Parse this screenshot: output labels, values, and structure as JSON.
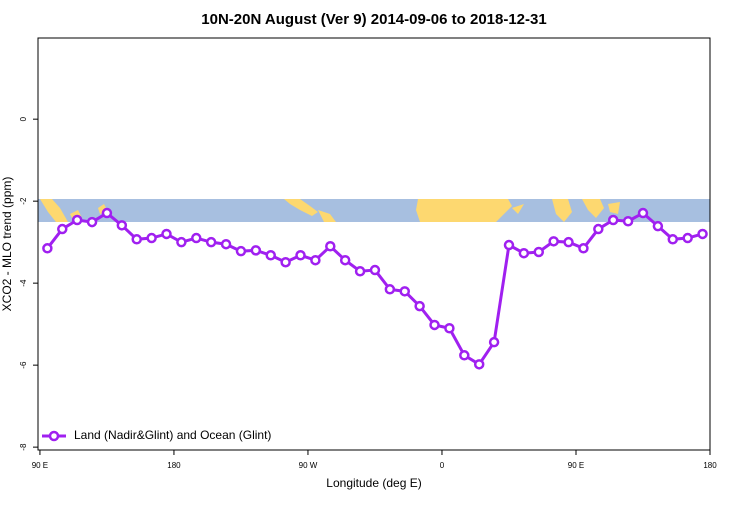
{
  "chart_data": {
    "type": "line",
    "title": "10N-20N August (Ver 9)   2014-09-06 to 2018-12-31",
    "x_label": "Longitude (deg E)",
    "y_label": "XCO2 - MLO trend (ppm)",
    "xlim": [
      88.7,
      540
    ],
    "ylim": [
      -8.07,
      1.98
    ],
    "xticks": [
      {
        "value": 90,
        "label": "90 E"
      },
      {
        "value": 180,
        "label": "180"
      },
      {
        "value": 270,
        "label": "90 W"
      },
      {
        "value": 360,
        "label": "0"
      },
      {
        "value": 450,
        "label": "90 E"
      },
      {
        "value": 540,
        "label": "180"
      }
    ],
    "yticks": [
      0,
      -2,
      -4,
      -6,
      -8
    ],
    "legend": "bottom-left",
    "x": [
      95,
      105,
      115,
      125,
      135,
      145,
      155,
      165,
      175,
      185,
      195,
      205,
      215,
      225,
      235,
      245,
      255,
      265,
      275,
      285,
      295,
      305,
      315,
      325,
      335,
      345,
      355,
      365,
      375,
      385,
      395,
      405,
      415,
      425,
      435,
      445,
      455,
      465,
      475,
      485,
      495,
      505,
      515,
      525,
      535
    ],
    "series": [
      {
        "name": "Land (Nadir&Glint) and Ocean (Glint)",
        "color": "#a020f0",
        "values": [
          -3.15,
          -2.68,
          -2.46,
          -2.51,
          -2.29,
          -2.59,
          -2.93,
          -2.9,
          -2.8,
          -3.0,
          -2.9,
          -3.0,
          -3.05,
          -3.22,
          -3.2,
          -3.32,
          -3.49,
          -3.32,
          -3.44,
          -3.1,
          -3.44,
          -3.71,
          -3.68,
          -4.15,
          -4.2,
          -4.56,
          -5.02,
          -5.1,
          -5.76,
          -5.98,
          -5.44,
          -3.07,
          -3.27,
          -3.24,
          -2.98,
          -3.0,
          -3.15,
          -2.68,
          -2.46,
          -2.49,
          -2.29,
          -2.61,
          -2.93,
          -2.9,
          -2.8
        ]
      }
    ]
  }
}
